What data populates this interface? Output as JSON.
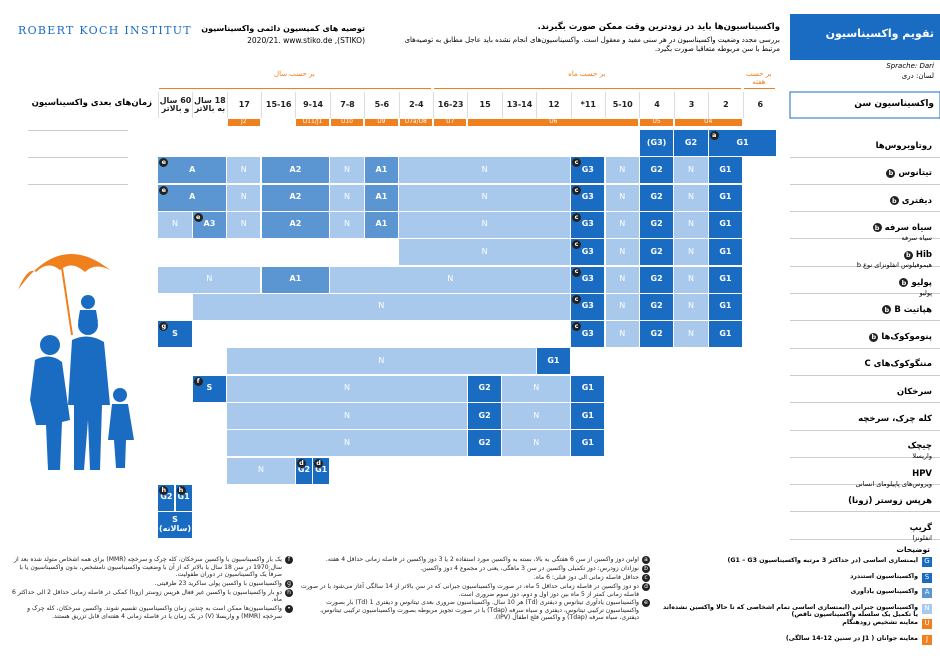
{
  "header": {
    "logo": "ROBERT KOCH INSTITUT",
    "stiko_title": "توصیه های کمیسیون دائمی واکسیناسیون",
    "stiko_source": "(STIKO), 2020/21. www.stiko.de",
    "intro_title": "واکسیناسیون‌ها باید در زودترین وقت ممکن صورت بگیرند.",
    "intro_text": "بررسی مجدد وضعیت واکسیناسیون در هر سنی مفید و معقول است. واکسیناسیون‌های انجام نشده باید عاجل مطابق به توصیه‌های مرتبط با سن مربوطه متعاقبا صورت بگیرد.",
    "badge": "تقویم واکسیناسیون",
    "language_de": "Sprache: Dari",
    "language": "لسان: دری"
  },
  "table": {
    "age_header": "واکسیناسیون سن",
    "later_header": "زمان‌های بعدی واکسیناسیون",
    "columns": [
      "6",
      "2",
      "3",
      "4",
      "5-10",
      "11*",
      "12",
      "13-14",
      "15",
      "16-23",
      "2-4",
      "5-6",
      "7-8",
      "9-14",
      "15-16",
      "17",
      "18 سال به بالاتر",
      "60 سال و بالاتر"
    ],
    "groups": [
      {
        "label": "بر حسب هفته",
        "from": "6",
        "to": "6"
      },
      {
        "label": "بر حسب ماه",
        "from": "2",
        "to": "16-23"
      },
      {
        "label": "بر حسب سال",
        "from": "2-4",
        "to": "60 سال و بالاتر"
      }
    ],
    "checkups": [
      {
        "label": "U4",
        "from": "2",
        "to": "3"
      },
      {
        "label": "U5",
        "from": "4",
        "to": "4"
      },
      {
        "label": "U6",
        "from": "5-10",
        "to": "15"
      },
      {
        "label": "U7",
        "from": "16-23",
        "to": "16-23"
      },
      {
        "label": "U7a/U8",
        "from": "2-4",
        "to": "2-4"
      },
      {
        "label": "U9",
        "from": "5-6",
        "to": "5-6"
      },
      {
        "label": "U10",
        "from": "7-8",
        "to": "7-8"
      },
      {
        "label": "U11/J1",
        "from": "9-14",
        "to": "9-14"
      },
      {
        "label": "J2",
        "from": "17",
        "to": "17"
      }
    ],
    "rows": [
      {
        "label": "روتاویروس‌ها",
        "cells": [
          {
            "label": "G1",
            "kind": "G",
            "from": "6",
            "to": "2",
            "note": "a"
          },
          {
            "label": "G2",
            "kind": "G",
            "from": "3",
            "to": "3"
          },
          {
            "label": "(G3)",
            "kind": "G",
            "from": "4",
            "to": "4"
          }
        ]
      },
      {
        "label": "تیتانوس",
        "note": "b",
        "cells": [
          {
            "label": "G1",
            "kind": "G",
            "from": "2",
            "to": "2"
          },
          {
            "label": "N",
            "kind": "N",
            "from": "3",
            "to": "3"
          },
          {
            "label": "G2",
            "kind": "G",
            "from": "4",
            "to": "4"
          },
          {
            "label": "N",
            "kind": "N",
            "from": "5-10",
            "to": "5-10"
          },
          {
            "label": "G3",
            "kind": "G",
            "from": "11*",
            "to": "11*",
            "note": "c"
          },
          {
            "label": "N",
            "kind": "N",
            "from": "12",
            "to": "2-4"
          },
          {
            "label": "A1",
            "kind": "A",
            "from": "5-6",
            "to": "5-6"
          },
          {
            "label": "N",
            "kind": "N",
            "from": "7-8",
            "to": "7-8"
          },
          {
            "label": "A2",
            "kind": "A",
            "from": "9-14",
            "to": "15-16"
          },
          {
            "label": "N",
            "kind": "N",
            "from": "17",
            "to": "17"
          },
          {
            "label": "A",
            "kind": "A",
            "from": "18 سال به بالاتر",
            "to": "60 سال و بالاتر",
            "note": "e"
          }
        ]
      },
      {
        "label": "دیفتری",
        "note": "b",
        "cells": [
          {
            "label": "G1",
            "kind": "G",
            "from": "2",
            "to": "2"
          },
          {
            "label": "N",
            "kind": "N",
            "from": "3",
            "to": "3"
          },
          {
            "label": "G2",
            "kind": "G",
            "from": "4",
            "to": "4"
          },
          {
            "label": "N",
            "kind": "N",
            "from": "5-10",
            "to": "5-10"
          },
          {
            "label": "G3",
            "kind": "G",
            "from": "11*",
            "to": "11*",
            "note": "c"
          },
          {
            "label": "N",
            "kind": "N",
            "from": "12",
            "to": "2-4"
          },
          {
            "label": "A1",
            "kind": "A",
            "from": "5-6",
            "to": "5-6"
          },
          {
            "label": "N",
            "kind": "N",
            "from": "7-8",
            "to": "7-8"
          },
          {
            "label": "A2",
            "kind": "A",
            "from": "9-14",
            "to": "15-16"
          },
          {
            "label": "N",
            "kind": "N",
            "from": "17",
            "to": "17"
          },
          {
            "label": "A",
            "kind": "A",
            "from": "18 سال به بالاتر",
            "to": "60 سال و بالاتر",
            "note": "e"
          }
        ]
      },
      {
        "label": "سیاه سرفه",
        "sub": "سیاه سرفه",
        "note": "b",
        "cells": [
          {
            "label": "G1",
            "kind": "G",
            "from": "2",
            "to": "2"
          },
          {
            "label": "N",
            "kind": "N",
            "from": "3",
            "to": "3"
          },
          {
            "label": "G2",
            "kind": "G",
            "from": "4",
            "to": "4"
          },
          {
            "label": "N",
            "kind": "N",
            "from": "5-10",
            "to": "5-10"
          },
          {
            "label": "G3",
            "kind": "G",
            "from": "11*",
            "to": "11*",
            "note": "c"
          },
          {
            "label": "N",
            "kind": "N",
            "from": "12",
            "to": "2-4"
          },
          {
            "label": "A1",
            "kind": "A",
            "from": "5-6",
            "to": "5-6"
          },
          {
            "label": "N",
            "kind": "N",
            "from": "7-8",
            "to": "7-8"
          },
          {
            "label": "A2",
            "kind": "A",
            "from": "9-14",
            "to": "15-16"
          },
          {
            "label": "N",
            "kind": "N",
            "from": "17",
            "to": "17"
          },
          {
            "label": "A3",
            "kind": "A",
            "from": "18 سال به بالاتر",
            "to": "18 سال به بالاتر",
            "note": "e"
          },
          {
            "label": "N",
            "kind": "N",
            "from": "60 سال و بالاتر",
            "to": "60 سال و بالاتر"
          }
        ]
      },
      {
        "label": "Hib",
        "sub": "هیموفیلوس انفلونزای نوع b",
        "note": "b",
        "cells": [
          {
            "label": "G1",
            "kind": "G",
            "from": "2",
            "to": "2"
          },
          {
            "label": "N",
            "kind": "N",
            "from": "3",
            "to": "3"
          },
          {
            "label": "G2",
            "kind": "G",
            "from": "4",
            "to": "4"
          },
          {
            "label": "N",
            "kind": "N",
            "from": "5-10",
            "to": "5-10"
          },
          {
            "label": "G3",
            "kind": "G",
            "from": "11*",
            "to": "11*",
            "note": "c"
          },
          {
            "label": "N",
            "kind": "N",
            "from": "12",
            "to": "2-4"
          }
        ]
      },
      {
        "label": "پولیو",
        "sub": "پولیو",
        "note": "b",
        "cells": [
          {
            "label": "G1",
            "kind": "G",
            "from": "2",
            "to": "2"
          },
          {
            "label": "N",
            "kind": "N",
            "from": "3",
            "to": "3"
          },
          {
            "label": "G2",
            "kind": "G",
            "from": "4",
            "to": "4"
          },
          {
            "label": "N",
            "kind": "N",
            "from": "5-10",
            "to": "5-10"
          },
          {
            "label": "G3",
            "kind": "G",
            "from": "11*",
            "to": "11*",
            "note": "c"
          },
          {
            "label": "N",
            "kind": "N",
            "from": "12",
            "to": "7-8"
          },
          {
            "label": "A1",
            "kind": "A",
            "from": "9-14",
            "to": "15-16"
          },
          {
            "label": "N",
            "kind": "N",
            "from": "17",
            "to": "60 سال و بالاتر"
          }
        ]
      },
      {
        "label": "هپاتیت B",
        "note": "b",
        "cells": [
          {
            "label": "G1",
            "kind": "G",
            "from": "2",
            "to": "2"
          },
          {
            "label": "N",
            "kind": "N",
            "from": "3",
            "to": "3"
          },
          {
            "label": "G2",
            "kind": "G",
            "from": "4",
            "to": "4"
          },
          {
            "label": "N",
            "kind": "N",
            "from": "5-10",
            "to": "5-10"
          },
          {
            "label": "G3",
            "kind": "G",
            "from": "11*",
            "to": "11*",
            "note": "c"
          },
          {
            "label": "N",
            "kind": "N",
            "from": "12",
            "to": "18 سال به بالاتر"
          }
        ]
      },
      {
        "label": "پنوموکوک‌ها",
        "note": "b",
        "cells": [
          {
            "label": "G1",
            "kind": "G",
            "from": "2",
            "to": "2"
          },
          {
            "label": "N",
            "kind": "N",
            "from": "3",
            "to": "3"
          },
          {
            "label": "G2",
            "kind": "G",
            "from": "4",
            "to": "4"
          },
          {
            "label": "N",
            "kind": "N",
            "from": "5-10",
            "to": "5-10"
          },
          {
            "label": "G3",
            "kind": "G",
            "from": "11*",
            "to": "11*",
            "note": "c"
          },
          {
            "label": "S",
            "kind": "S",
            "from": "60 سال و بالاتر",
            "to": "60 سال و بالاتر",
            "note": "g"
          }
        ]
      },
      {
        "label": "مننگوکوک‌های C",
        "cells": [
          {
            "label": "G1",
            "kind": "G",
            "from": "12",
            "to": "12"
          },
          {
            "label": "N",
            "kind": "N",
            "from": "13-14",
            "to": "17"
          }
        ]
      },
      {
        "label": "سرخکان",
        "cells": [
          {
            "label": "G1",
            "kind": "G",
            "from": "11*",
            "to": "11*"
          },
          {
            "label": "N",
            "kind": "N",
            "from": "12",
            "to": "13-14"
          },
          {
            "label": "G2",
            "kind": "G",
            "from": "15",
            "to": "15"
          },
          {
            "label": "N",
            "kind": "N",
            "from": "16-23",
            "to": "17"
          },
          {
            "label": "S",
            "kind": "S",
            "from": "18 سال به بالاتر",
            "to": "18 سال به بالاتر",
            "note": "f"
          }
        ]
      },
      {
        "label": "کله چرک، سرخچه",
        "cells": [
          {
            "label": "G1",
            "kind": "G",
            "from": "11*",
            "to": "11*"
          },
          {
            "label": "N",
            "kind": "N",
            "from": "12",
            "to": "13-14"
          },
          {
            "label": "G2",
            "kind": "G",
            "from": "15",
            "to": "15"
          },
          {
            "label": "N",
            "kind": "N",
            "from": "16-23",
            "to": "17"
          }
        ]
      },
      {
        "label": "چیچک",
        "sub": "واریسلا",
        "cells": [
          {
            "label": "G1",
            "kind": "G",
            "from": "11*",
            "to": "11*"
          },
          {
            "label": "N",
            "kind": "N",
            "from": "12",
            "to": "13-14"
          },
          {
            "label": "G2",
            "kind": "G",
            "from": "15",
            "to": "15"
          },
          {
            "label": "N",
            "kind": "N",
            "from": "16-23",
            "to": "17"
          }
        ]
      },
      {
        "label": "HPV",
        "sub": "ویروس‌های پاپیلومای انسانی",
        "cells": [
          {
            "label": "G1",
            "kind": "G",
            "from": "9-14",
            "to": "9-14",
            "note": "d"
          },
          {
            "label": "G2",
            "kind": "G",
            "from": "9-14",
            "to": "9-14",
            "note": "d"
          },
          {
            "label": "N",
            "kind": "N",
            "from": "15-16",
            "to": "17"
          }
        ]
      },
      {
        "label": "هرپس زوستر (زونا)",
        "cells": [
          {
            "label": "G1",
            "kind": "G",
            "from": "60 سال و بالاتر",
            "to": "60 سال و بالاتر",
            "note": "h"
          },
          {
            "label": "G2",
            "kind": "G",
            "from": "60 سال و بالاتر",
            "to": "60 سال و بالاتر",
            "note": "h"
          }
        ]
      },
      {
        "label": "گریپ",
        "sub": "انفلونزا",
        "cells": [
          {
            "label": "S (سالانه)",
            "kind": "S",
            "from": "60 سال و بالاتر",
            "to": "60 سال و بالاتر"
          }
        ]
      }
    ],
    "kinds": {
      "G": "#1a6cc2",
      "S": "#1a6cc2",
      "A": "#5b96d3",
      "N": "#a8c9ec",
      "U": "#f07f1e",
      "J": "#f07f1e"
    }
  },
  "legend": {
    "title": "توضیحات",
    "items": [
      {
        "symbol": "G",
        "text": "ایمنسازی اساسی (در حداکثر 3 مرتبه واکسیناسیون G1 – G3)"
      },
      {
        "symbol": "S",
        "text": "واکسیناسیون استندرد"
      },
      {
        "symbol": "A",
        "text": "واکسیناسیون یادآوری"
      },
      {
        "symbol": "N",
        "text": "واکسیناسیون جبرانی (ایمنسازی اساسی تمام اشخاصی که تا حالا واکسین نشده‌اند یا تکمیل یک سلسله واکسیناسیون ناقص)"
      },
      {
        "symbol": "U",
        "text": "معاینه تشخیص زودهنگام"
      },
      {
        "symbol": "J",
        "text": "معاینه جوانان ( J1 در سنین 12-14 سالگی)"
      }
    ]
  },
  "footnotes_middle": [
    {
      "letter": "a",
      "text": "اولین دوز واکسین از سن 6 هفتگی به بالا، بسته به واکسین مورد استفاده 2 یا 3 دوز واکسین در فاصله زمانی حداقل 4 هفته."
    },
    {
      "letter": "b",
      "text": "نوزادان زودرس: دوز تکمیلی واکسین در سن 3 ماهگی، یعنی در مجموع 4 دوز واکسین."
    },
    {
      "letter": "c",
      "text": "حداقل فاصله زمانی الی دوز قبلی: 6 ماه."
    },
    {
      "letter": "d",
      "text": "دو دوز واکسین در فاصله زمانی حداقل 5 ماه، در صورت واکسیناسیون جبرانی که در سن بالاتر از 14 سالگی آغاز می‌شود یا در صورت فاصله زمانی کمتر از 5 ماه بین دوز اول و دوم، دوز سوم ضروری است."
    },
    {
      "letter": "e",
      "text": "واکسیناسیون یادآوری تیتانوس و دیفتری (Td) هر 10 سال. واکسیناسیون ضروری بعدی تیتانوس و دیفتری 1 (Td) بار بصورت واکسیناسیون ترکیبی تیتانوس، دیفتری و سیاه سرفه (Tdap) یا در صورت تجویز مربوطه بصورت واکسیناسیون ترکیبی تیتانوس، دیفتری، سیاه سرفه (Tdap) و واکسین فلج اطفال (IPV)."
    }
  ],
  "footnotes_left": [
    {
      "letter": "f",
      "text": "یک بار واکسیناسیون با واکسین سرخکان، کله چرک و سرخچه (MMR) برای همه اشخاص متولد شده بعد از سال 1970 در سن 18 سال یا بالاتر که از آن با وضعیت واکسیناسیون نامشخص، بدون واکسیناسیون یا با صرفاً یک واکسیناسیون در دوران طفولیت."
    },
    {
      "letter": "g",
      "text": "واکسیناسیون با واکسین پولی ساکرید 23 ظرفیتی."
    },
    {
      "letter": "h",
      "text": "دو بار واکسیناسیون با واکسین غیر فعال هرپس زوستر (زونا) کمکی در فاصله زمانی حداقل 2 الی حداکثر 6 ماه."
    },
    {
      "letter": "•",
      "text": "واکسیناسیون‌ها ممکن است به چندین زمان واکسیناسیون تقسیم شوند. واکسین سرخکان، کله چرک و سرخچه (MMR) و واریسلا (V) در یک زمان یا در فاصله زمانی 4 هفته‌ای قابل تزریق هستند."
    }
  ]
}
